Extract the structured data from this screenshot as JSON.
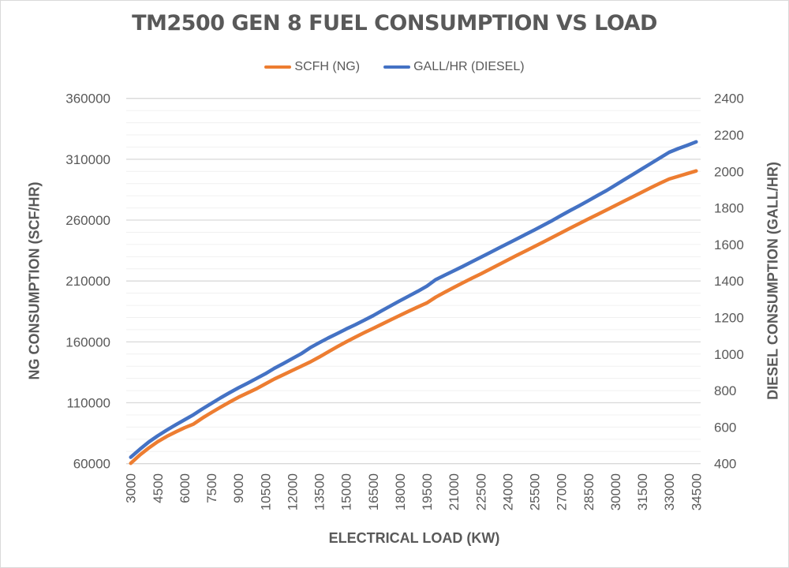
{
  "chart_data": {
    "type": "line",
    "title": "TM2500 GEN 8 FUEL CONSUMPTION VS LOAD",
    "xlabel": "ELECTRICAL LOAD (KW)",
    "ylabel": "NG CONSUMPTION (SCF/HR)",
    "y2label": "DIESEL CONSUMPTION (GALL/HR)",
    "ylim": [
      60000,
      360000
    ],
    "y2lim": [
      400,
      2400
    ],
    "y_ticks": [
      "60000",
      "110000",
      "160000",
      "210000",
      "260000",
      "310000",
      "360000"
    ],
    "y2_ticks": [
      "400",
      "600",
      "800",
      "1000",
      "1200",
      "1400",
      "1600",
      "1800",
      "2000",
      "2200",
      "2400"
    ],
    "x_tick_labels": [
      "3000",
      "4500",
      "6000",
      "7500",
      "9000",
      "10500",
      "12000",
      "13500",
      "15000",
      "16500",
      "18000",
      "19500",
      "21000",
      "22500",
      "24000",
      "25500",
      "27000",
      "28500",
      "30000",
      "31500",
      "33000",
      "34500"
    ],
    "x": [
      3000,
      3500,
      4000,
      4500,
      5000,
      5500,
      6000,
      6500,
      7000,
      7500,
      8000,
      8500,
      9000,
      9500,
      10000,
      10500,
      11000,
      11500,
      12000,
      12500,
      13000,
      13500,
      14000,
      14500,
      15000,
      15500,
      16000,
      16500,
      17000,
      17500,
      18000,
      18500,
      19000,
      19500,
      20000,
      20500,
      21000,
      21500,
      22000,
      22500,
      23000,
      23500,
      24000,
      24500,
      25000,
      25500,
      26000,
      26500,
      27000,
      27500,
      28000,
      28500,
      29000,
      29500,
      30000,
      30500,
      31000,
      31500,
      32000,
      32500,
      33000,
      33500,
      34000,
      34500
    ],
    "grid": true,
    "legend_position": "top",
    "series": [
      {
        "name": "SCFH (NG)",
        "axis": "left",
        "color": "#ED7D31",
        "values": [
          60300,
          67000,
          72800,
          78000,
          82300,
          86000,
          89500,
          92500,
          97500,
          102000,
          106300,
          110500,
          114500,
          118000,
          121500,
          125500,
          129500,
          133000,
          136500,
          140000,
          143500,
          147500,
          151800,
          156000,
          160000,
          163800,
          167500,
          171000,
          174600,
          178200,
          181800,
          185300,
          188700,
          192000,
          196800,
          200800,
          204700,
          208500,
          212200,
          215800,
          219600,
          223400,
          227200,
          231000,
          234700,
          238400,
          242100,
          245900,
          249700,
          253500,
          257300,
          261000,
          264600,
          268300,
          272000,
          275700,
          279400,
          283100,
          286800,
          290400,
          293800,
          296000,
          298200,
          300400
        ]
      },
      {
        "name": "GALL/HR (DIESEL)",
        "axis": "right",
        "color": "#4472C4",
        "values": [
          435,
          478,
          518,
          552,
          583,
          612,
          640,
          668,
          700,
          730,
          760,
          788,
          815,
          840,
          866,
          892,
          922,
          948,
          975,
          1002,
          1035,
          1062,
          1088,
          1112,
          1137,
          1160,
          1185,
          1210,
          1238,
          1265,
          1292,
          1318,
          1344,
          1372,
          1408,
          1432,
          1456,
          1480,
          1505,
          1530,
          1555,
          1580,
          1605,
          1630,
          1655,
          1680,
          1706,
          1732,
          1760,
          1787,
          1813,
          1840,
          1868,
          1895,
          1925,
          1955,
          1985,
          2015,
          2045,
          2075,
          2105,
          2125,
          2143,
          2162
        ]
      }
    ]
  }
}
